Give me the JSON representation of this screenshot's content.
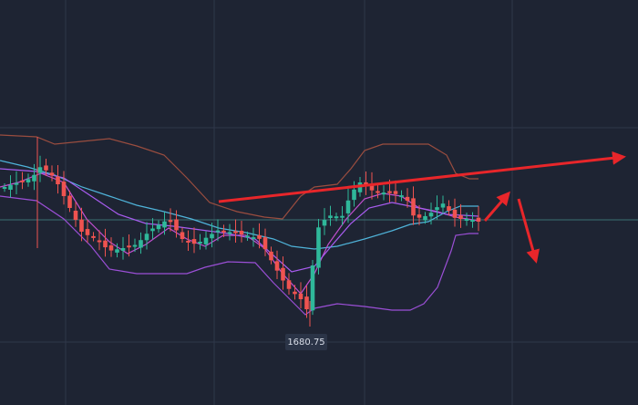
{
  "price_label": "1680.75"
}
